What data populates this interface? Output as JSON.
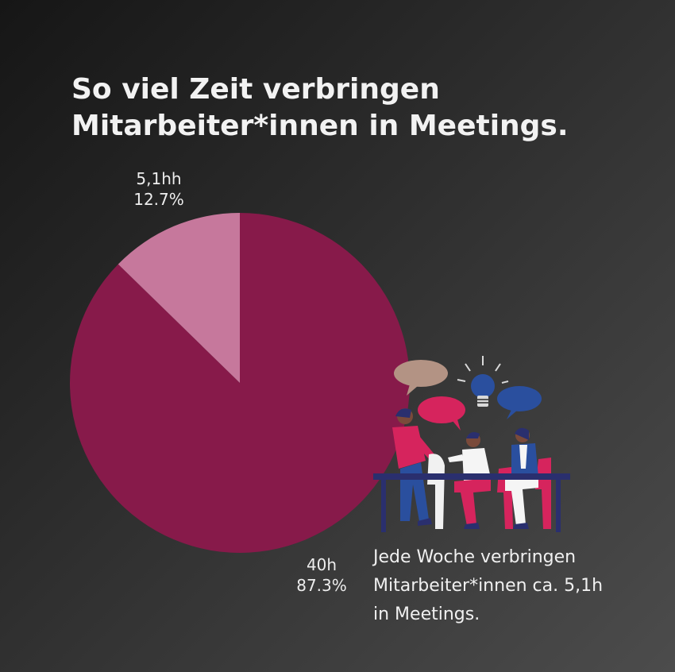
{
  "title_line1": "So viel Zeit verbringen",
  "title_line2": "Mitarbeiter*innen in Meetings.",
  "caption_lines": [
    "Jede Woche verbringen",
    "Mitarbeiter*innen ca. 5,1h",
    "in Meetings."
  ],
  "chart_data": {
    "type": "pie",
    "title": "So viel Zeit verbringen Mitarbeiter*innen in Meetings.",
    "slices": [
      {
        "label": "5,1hh",
        "percent_label": "12.7%",
        "value": 12.7,
        "color": "#c6789c"
      },
      {
        "label": "40h",
        "percent_label": "87.3%",
        "value": 87.3,
        "color": "#871a4a"
      }
    ],
    "start_angle": "12 o'clock",
    "direction": "counter-clockwise for small slice"
  },
  "colors": {
    "background_dark": "#161616",
    "background_light": "#4c4c4c",
    "accent_magenta": "#d6245d",
    "accent_blue": "#2a4f9e",
    "bubble_tan": "#b39384",
    "navy": "#2a2f6e"
  },
  "illustration": "meeting-people-illustration"
}
